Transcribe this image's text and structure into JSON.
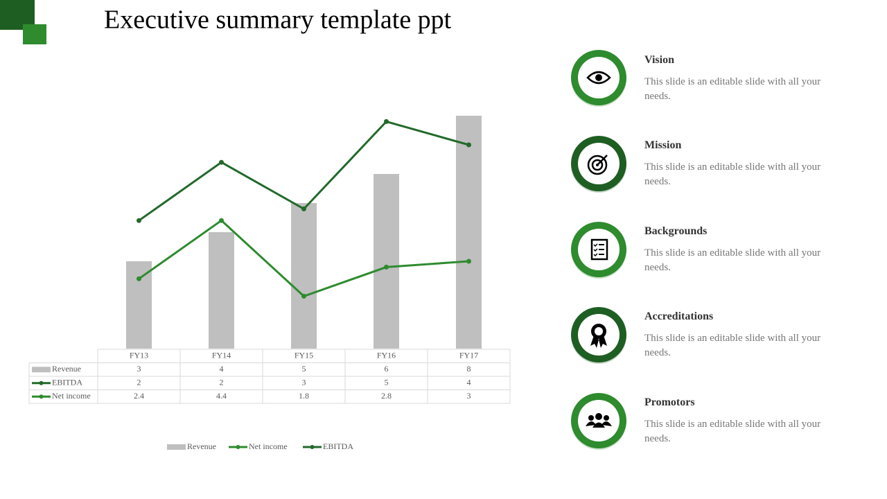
{
  "title": "Executive summary template ppt",
  "chart_data": {
    "type": "bar-line",
    "stacked_lines": true,
    "categories": [
      "FY13",
      "FY14",
      "FY15",
      "FY16",
      "FY17"
    ],
    "series": [
      {
        "name": "Revenue",
        "kind": "bar",
        "color": "#bfbfbf",
        "values": [
          3,
          4,
          5,
          6,
          8
        ]
      },
      {
        "name": "EBITDA",
        "kind": "line",
        "color": "#22692a",
        "values": [
          2,
          2,
          3,
          5,
          4
        ]
      },
      {
        "name": "Net income",
        "kind": "line",
        "color": "#2e8b2e",
        "values": [
          2.4,
          4.4,
          1.8,
          2.8,
          3
        ]
      }
    ],
    "ylim": [
      0,
      8
    ]
  },
  "items": [
    {
      "title": "Vision",
      "text": "This slide is an editable slide with all your needs."
    },
    {
      "title": "Mission",
      "text": "This slide is an editable slide with all your needs."
    },
    {
      "title": "Backgrounds",
      "text": "This slide is an editable slide with all your needs."
    },
    {
      "title": "Accreditations",
      "text": "This slide is an editable slide with all your needs."
    },
    {
      "title": "Promotors",
      "text": "This slide is an editable slide with all your needs."
    }
  ]
}
